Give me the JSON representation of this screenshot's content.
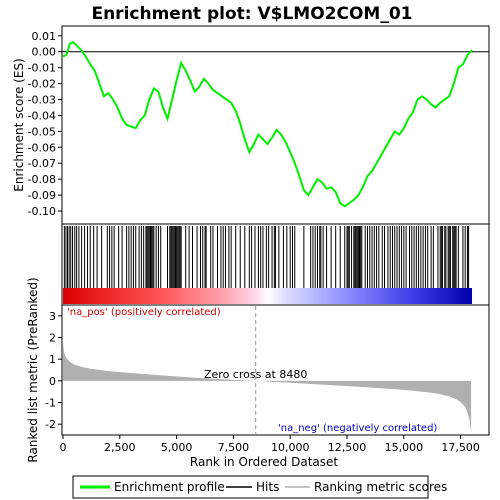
{
  "chart_data": {
    "type": "line",
    "title": "Enrichment plot: V$LMO2COM_01",
    "top_panel": {
      "ylabel": "Enrichment score (ES)",
      "ylim": [
        -0.105,
        0.013
      ],
      "yticks": [
        0.01,
        0.0,
        -0.01,
        -0.02,
        -0.03,
        -0.04,
        -0.05,
        -0.06,
        -0.07,
        -0.08,
        -0.09,
        -0.1
      ],
      "ytick_labels": [
        "0.01",
        "0.00",
        "-0.01",
        "-0.02",
        "-0.03",
        "-0.04",
        "-0.05",
        "-0.06",
        "-0.07",
        "-0.08",
        "-0.09",
        "-0.10"
      ],
      "series": [
        {
          "name": "Enrichment profile",
          "color": "#00ee00",
          "x": [
            0,
            150,
            300,
            450,
            600,
            800,
            1000,
            1200,
            1400,
            1600,
            1800,
            2000,
            2200,
            2400,
            2600,
            2800,
            3000,
            3200,
            3400,
            3600,
            3800,
            4000,
            4200,
            4400,
            4600,
            4800,
            5000,
            5200,
            5400,
            5600,
            5800,
            6000,
            6200,
            6400,
            6600,
            6800,
            7000,
            7200,
            7400,
            7600,
            7800,
            8000,
            8200,
            8400,
            8600,
            8800,
            9000,
            9200,
            9400,
            9600,
            9800,
            10000,
            10200,
            10400,
            10600,
            10800,
            11000,
            11200,
            11400,
            11600,
            11800,
            12000,
            12200,
            12400,
            12600,
            12800,
            13000,
            13200,
            13400,
            13600,
            13800,
            14000,
            14200,
            14400,
            14600,
            14800,
            15000,
            15200,
            15400,
            15600,
            15800,
            16000,
            16200,
            16400,
            16600,
            16800,
            17000,
            17200,
            17400,
            17600,
            17800,
            18000
          ],
          "y": [
            -0.003,
            -0.002,
            0.005,
            0.006,
            0.004,
            0.001,
            -0.003,
            -0.008,
            -0.012,
            -0.02,
            -0.028,
            -0.026,
            -0.03,
            -0.035,
            -0.042,
            -0.046,
            -0.047,
            -0.048,
            -0.043,
            -0.04,
            -0.03,
            -0.023,
            -0.025,
            -0.035,
            -0.042,
            -0.03,
            -0.018,
            -0.007,
            -0.012,
            -0.018,
            -0.025,
            -0.022,
            -0.017,
            -0.02,
            -0.024,
            -0.026,
            -0.028,
            -0.03,
            -0.032,
            -0.037,
            -0.045,
            -0.055,
            -0.063,
            -0.058,
            -0.052,
            -0.055,
            -0.058,
            -0.054,
            -0.049,
            -0.052,
            -0.057,
            -0.063,
            -0.07,
            -0.078,
            -0.087,
            -0.09,
            -0.085,
            -0.08,
            -0.082,
            -0.086,
            -0.085,
            -0.088,
            -0.095,
            -0.097,
            -0.095,
            -0.093,
            -0.09,
            -0.085,
            -0.078,
            -0.075,
            -0.07,
            -0.065,
            -0.06,
            -0.055,
            -0.05,
            -0.052,
            -0.048,
            -0.042,
            -0.038,
            -0.03,
            -0.028,
            -0.03,
            -0.033,
            -0.035,
            -0.032,
            -0.03,
            -0.028,
            -0.02,
            -0.01,
            -0.008,
            -0.002,
            0.001
          ]
        }
      ]
    },
    "hits_panel": {
      "legend_name": "Hits",
      "x": [
        60,
        130,
        200,
        270,
        340,
        420,
        520,
        600,
        700,
        820,
        950,
        1080,
        1200,
        1350,
        1500,
        1700,
        1950,
        2050,
        2150,
        2250,
        2450,
        2600,
        2800,
        2900,
        3000,
        3100,
        3200,
        3350,
        3450,
        3550,
        3650,
        3700,
        3750,
        3800,
        3850,
        3900,
        3950,
        4000,
        4100,
        4200,
        4300,
        4600,
        4700,
        4750,
        4800,
        4850,
        4900,
        4950,
        5000,
        5050,
        5100,
        5150,
        5200,
        5400,
        5550,
        5700,
        5900,
        6050,
        6150,
        6250,
        6300,
        6500,
        6600,
        6800,
        6950,
        7050,
        7150,
        7300,
        7400,
        7600,
        7800,
        8000,
        8200,
        8300,
        8450,
        8600,
        8700,
        8800,
        8950,
        9050,
        9200,
        9300,
        9350,
        9500,
        9700,
        9850,
        10000,
        10100,
        10200,
        10600,
        10900,
        11000,
        11100,
        11200,
        11300,
        11350,
        11450,
        11600,
        11800,
        12000,
        12200,
        12400,
        12500,
        12550,
        12600,
        12700,
        12800,
        12850,
        12900,
        12950,
        13000,
        13050,
        13100,
        13150,
        13300,
        13400,
        13500,
        13600,
        13700,
        13800,
        13900,
        14050,
        14150,
        14300,
        14400,
        14500,
        14600,
        14700,
        14800,
        14900,
        15000,
        15100,
        15250,
        15350,
        15450,
        15550,
        15650,
        15750,
        15850,
        15950,
        16050,
        16200,
        16300,
        16500,
        16600,
        16650,
        16700,
        16800,
        16850,
        16950,
        17000,
        17050,
        17150,
        17200,
        17250,
        17300,
        17400,
        17600,
        17700,
        17800,
        17850
      ]
    },
    "ranked_panel": {
      "ylabel": "Ranked list metric (PreRanked)",
      "xlabel": "Rank in Ordered Dataset",
      "ylim": [
        -2.5,
        3.5
      ],
      "yticks": [
        3,
        2,
        1,
        0,
        -1,
        -2
      ],
      "ytick_labels": [
        "3",
        "2",
        "1",
        "0",
        "-1",
        "-2"
      ],
      "xlim": [
        0,
        18000
      ],
      "xticks": [
        0,
        2500,
        5000,
        7500,
        10000,
        12500,
        15000,
        17500
      ],
      "xtick_labels": [
        "0",
        "2,500",
        "5,000",
        "7,500",
        "10,000",
        "12,500",
        "15,000",
        "17,500"
      ],
      "profile": {
        "x": [
          0,
          50,
          150,
          300,
          500,
          800,
          1200,
          2000,
          3000,
          4000,
          5000,
          6000,
          7000,
          8000,
          8480,
          9000,
          10000,
          11000,
          12000,
          13000,
          14000,
          15000,
          16000,
          16500,
          17000,
          17300,
          17500,
          17700,
          17800,
          17900,
          17960
        ],
        "y": [
          1.75,
          1.3,
          1.05,
          0.88,
          0.75,
          0.65,
          0.56,
          0.45,
          0.36,
          0.28,
          0.2,
          0.13,
          0.07,
          0.02,
          0.0,
          -0.03,
          -0.09,
          -0.15,
          -0.21,
          -0.27,
          -0.34,
          -0.42,
          -0.52,
          -0.6,
          -0.72,
          -0.85,
          -0.98,
          -1.2,
          -1.45,
          -1.85,
          -2.4
        ]
      },
      "zero_cross_label": "Zero cross at 8480",
      "zero_cross_x": 8480,
      "pos_label": "'na_pos' (positively correlated)",
      "neg_label": "'na_neg' (negatively correlated)"
    },
    "legend": {
      "items": [
        "Enrichment profile",
        "Hits",
        "Ranking metric scores"
      ]
    },
    "colors": {
      "profile": "#00ee00",
      "hits": "#000000",
      "ranked_fill": "#b0b0b0",
      "pos_label": "#cc0000",
      "neg_label": "#0000cc",
      "zero_line": "#9a9a9a"
    }
  }
}
